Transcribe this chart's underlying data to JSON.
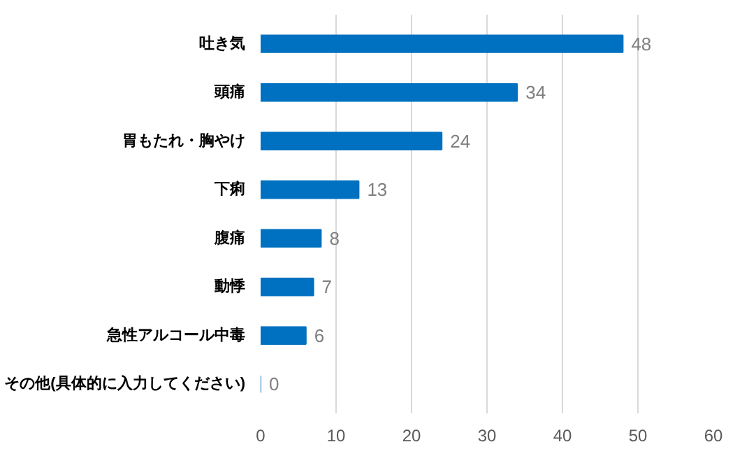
{
  "chart_data": {
    "type": "bar",
    "orientation": "horizontal",
    "categories": [
      "吐き気",
      "頭痛",
      "胃もたれ・胸やけ",
      "下痢",
      "腹痛",
      "動悸",
      "急性アルコール中毒",
      "その他(具体的に入力してください)"
    ],
    "values": [
      48,
      34,
      24,
      13,
      8,
      7,
      6,
      0
    ],
    "color": "#0070c0",
    "xlim": [
      0,
      60
    ],
    "xticks": [
      0,
      10,
      20,
      30,
      40,
      50,
      60
    ],
    "grid": "x",
    "data_labels": true
  }
}
